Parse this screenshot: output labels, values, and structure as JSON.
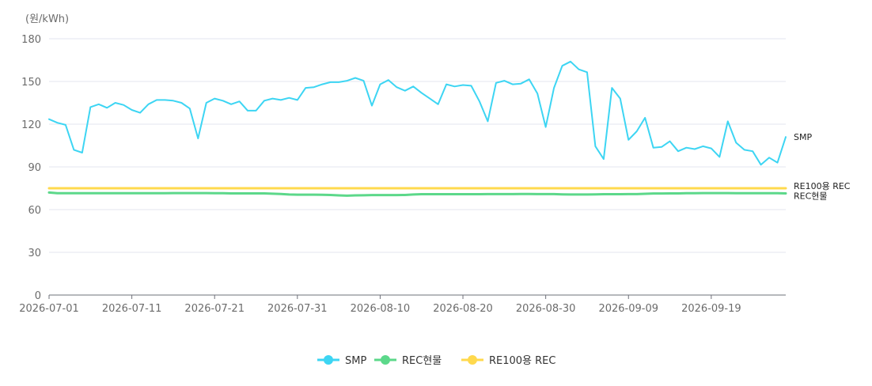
{
  "chart_data": {
    "type": "line",
    "unit_label": "(원/kWh)",
    "ylim": [
      0,
      180
    ],
    "y_ticks": [
      0,
      30,
      60,
      90,
      120,
      150,
      180
    ],
    "x_tick_labels": [
      "2026-07-01",
      "2026-07-11",
      "2026-07-21",
      "2026-07-31",
      "2026-08-10",
      "2026-08-20",
      "2026-08-30",
      "2026-09-09",
      "2026-09-19"
    ],
    "x_start": "2026-07-01",
    "x_end": "2026-09-28",
    "grid": true,
    "legend_position": "bottom",
    "series": [
      {
        "name": "SMP",
        "color": "#3dd5f3",
        "values": [
          123.5,
          121,
          119.5,
          102,
          100,
          132,
          134,
          131.5,
          135,
          133.5,
          130,
          128,
          134,
          137,
          137,
          136.5,
          135,
          131,
          110,
          135,
          138,
          136.5,
          134,
          136,
          129.5,
          129.5,
          136.5,
          138,
          137,
          138.5,
          137,
          145.5,
          146,
          148,
          149.5,
          149.5,
          150.5,
          152.5,
          150.5,
          133,
          148,
          151,
          146,
          143.5,
          146.5,
          142,
          138,
          134,
          148,
          146.5,
          147.5,
          147,
          136,
          122,
          149,
          150.5,
          148,
          148.5,
          151.5,
          141.5,
          118,
          145.5,
          161,
          164,
          158.5,
          156.5,
          104.5,
          95.5,
          145.5,
          138,
          109,
          115,
          124.5,
          103.5,
          104,
          108,
          101,
          103.5,
          102.5,
          104.5,
          103,
          97,
          122,
          107,
          102,
          101,
          91.5,
          96.5,
          93,
          111
        ]
      },
      {
        "name": "REC현물",
        "color": "#5cd88a",
        "values": [
          72,
          71.5,
          71.5,
          71.5,
          71.5,
          71.5,
          71.5,
          71.5,
          71.5,
          71.5,
          71.5,
          71.5,
          71.5,
          71.5,
          71.5,
          71.6,
          71.6,
          71.6,
          71.6,
          71.6,
          71.5,
          71.5,
          71.4,
          71.4,
          71.4,
          71.4,
          71.4,
          71.2,
          71,
          70.6,
          70.5,
          70.5,
          70.5,
          70.4,
          70.3,
          70,
          69.8,
          70,
          70.1,
          70.2,
          70.2,
          70.2,
          70.2,
          70.3,
          70.6,
          70.8,
          70.8,
          70.8,
          70.8,
          70.8,
          70.8,
          70.8,
          70.8,
          70.9,
          70.9,
          70.9,
          70.9,
          71,
          71,
          70.9,
          70.9,
          70.9,
          70.7,
          70.6,
          70.6,
          70.6,
          70.7,
          70.8,
          70.8,
          70.8,
          70.9,
          70.9,
          71.1,
          71.3,
          71.3,
          71.4,
          71.4,
          71.5,
          71.5,
          71.6,
          71.6,
          71.6,
          71.6,
          71.5,
          71.5,
          71.5,
          71.5,
          71.5,
          71.5,
          71.4
        ]
      },
      {
        "name": "RE100용 REC",
        "color": "#ffd94d",
        "values": [
          75,
          75,
          75,
          75,
          75,
          75,
          75,
          75,
          75,
          75,
          75,
          75,
          75,
          75,
          75,
          75,
          75,
          75,
          75,
          75,
          75,
          75,
          75,
          75,
          75,
          75,
          75,
          75,
          75,
          75,
          75,
          75,
          75,
          75,
          75,
          75,
          75,
          75,
          75,
          75,
          75,
          75,
          75,
          75,
          75,
          75,
          75,
          75,
          75,
          75,
          75,
          75,
          75,
          75,
          75,
          75,
          75,
          75,
          75,
          75,
          75,
          75,
          75,
          75,
          75,
          75,
          75,
          75,
          75,
          75,
          75,
          75,
          75,
          75,
          75,
          75,
          75,
          75,
          75,
          75,
          75,
          75,
          75,
          75,
          75,
          75,
          75,
          75,
          75,
          75
        ]
      }
    ]
  }
}
